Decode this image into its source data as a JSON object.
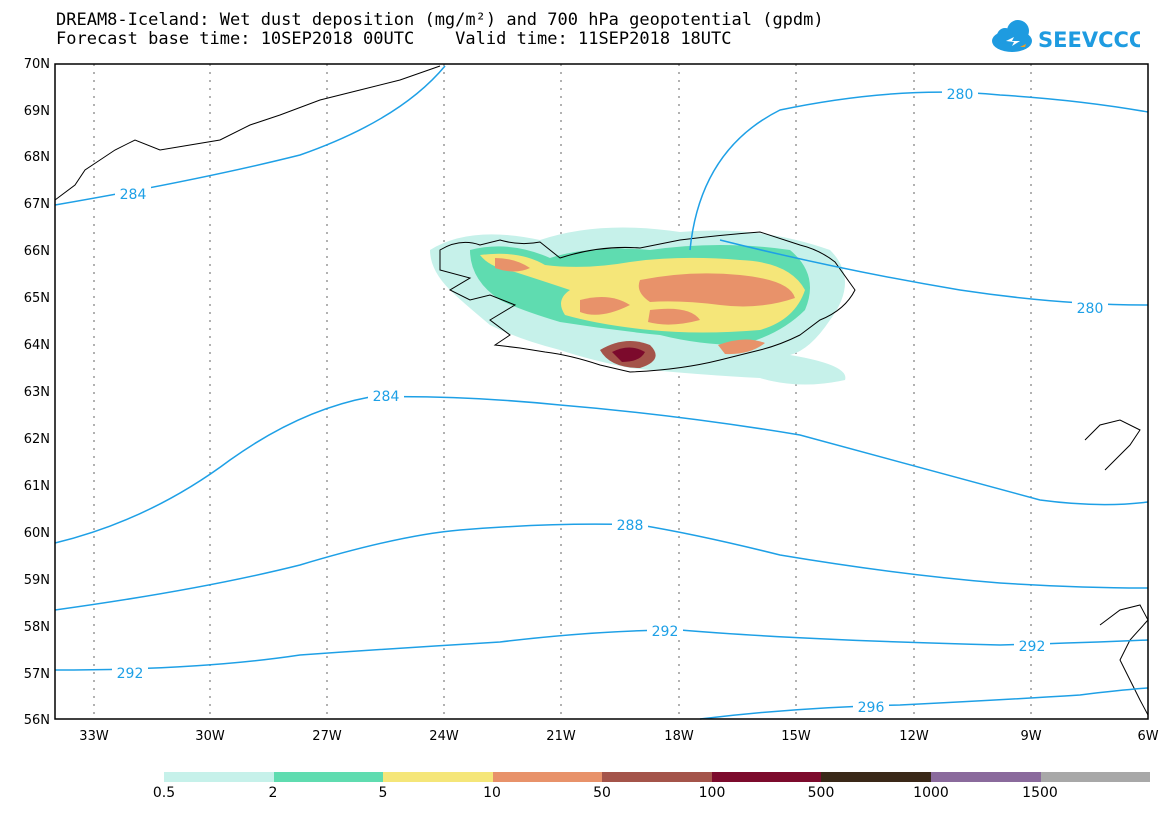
{
  "title_line1": "DREAM8-Iceland: Wet dust deposition (mg/m²) and 700 hPa geopotential (gpdm)",
  "title_line2": "Forecast base time: 10SEP2018 00UTC    Valid time: 11SEP2018 18UTC",
  "logo_text": "SEEVCCC",
  "colors": {
    "contour": "#1ea0e6",
    "coast": "#000000"
  },
  "lat_labels": [
    "70N",
    "69N",
    "68N",
    "67N",
    "66N",
    "65N",
    "64N",
    "63N",
    "62N",
    "61N",
    "60N",
    "59N",
    "58N",
    "57N",
    "56N"
  ],
  "lon_labels": [
    "33W",
    "30W",
    "27W",
    "24W",
    "21W",
    "18W",
    "15W",
    "12W",
    "9W",
    "6W"
  ],
  "contour_labels": [
    "284",
    "280",
    "280",
    "284",
    "288",
    "292",
    "292",
    "296"
  ],
  "colorbar": {
    "colors": [
      "#c6f1ea",
      "#5fdcb0",
      "#f5e679",
      "#e8926a",
      "#a4544a",
      "#7c0a2c",
      "#3a2818",
      "#8a6a9c",
      "#a8a8a8"
    ],
    "labels": [
      "0.5",
      "2",
      "5",
      "10",
      "50",
      "100",
      "500",
      "1000",
      "1500"
    ]
  }
}
